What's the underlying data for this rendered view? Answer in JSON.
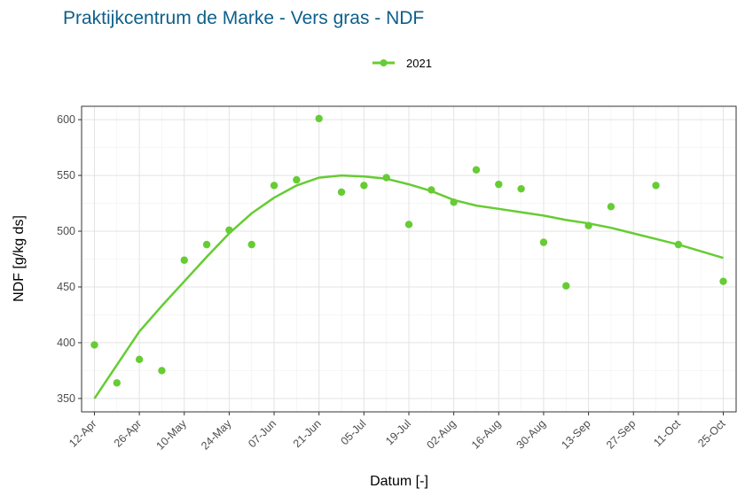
{
  "chart_data": {
    "type": "scatter",
    "title": "Praktijkcentrum de Marke - Vers gras - NDF",
    "xlabel": "Datum [-]",
    "ylabel": "NDF [g/kg ds]",
    "ylim": [
      338,
      612
    ],
    "xlim": [
      "2021-04-08",
      "2021-10-29"
    ],
    "yticks": [
      350,
      400,
      450,
      500,
      550,
      600
    ],
    "xticks": [
      {
        "date": "2021-04-12",
        "label": "12-Apr"
      },
      {
        "date": "2021-04-26",
        "label": "26-Apr"
      },
      {
        "date": "2021-05-10",
        "label": "10-May"
      },
      {
        "date": "2021-05-24",
        "label": "24-May"
      },
      {
        "date": "2021-06-07",
        "label": "07-Jun"
      },
      {
        "date": "2021-06-21",
        "label": "21-Jun"
      },
      {
        "date": "2021-07-05",
        "label": "05-Jul"
      },
      {
        "date": "2021-07-19",
        "label": "19-Jul"
      },
      {
        "date": "2021-08-02",
        "label": "02-Aug"
      },
      {
        "date": "2021-08-16",
        "label": "16-Aug"
      },
      {
        "date": "2021-08-30",
        "label": "30-Aug"
      },
      {
        "date": "2021-09-13",
        "label": "13-Sep"
      },
      {
        "date": "2021-09-27",
        "label": "27-Sep"
      },
      {
        "date": "2021-10-11",
        "label": "11-Oct"
      },
      {
        "date": "2021-10-25",
        "label": "25-Oct"
      }
    ],
    "grid": true,
    "legend_position": "top",
    "series": [
      {
        "name": "2021",
        "color": "#66cc33",
        "points": [
          [
            "2021-04-12",
            398
          ],
          [
            "2021-04-19",
            364
          ],
          [
            "2021-04-26",
            385
          ],
          [
            "2021-05-03",
            375
          ],
          [
            "2021-05-10",
            474
          ],
          [
            "2021-05-17",
            488
          ],
          [
            "2021-05-24",
            501
          ],
          [
            "2021-05-31",
            488
          ],
          [
            "2021-06-07",
            541
          ],
          [
            "2021-06-14",
            546
          ],
          [
            "2021-06-21",
            601
          ],
          [
            "2021-06-28",
            535
          ],
          [
            "2021-07-05",
            541
          ],
          [
            "2021-07-12",
            548
          ],
          [
            "2021-07-19",
            506
          ],
          [
            "2021-07-26",
            537
          ],
          [
            "2021-08-02",
            526
          ],
          [
            "2021-08-09",
            555
          ],
          [
            "2021-08-16",
            542
          ],
          [
            "2021-08-23",
            538
          ],
          [
            "2021-08-30",
            490
          ],
          [
            "2021-09-06",
            451
          ],
          [
            "2021-09-13",
            505
          ],
          [
            "2021-09-20",
            522
          ],
          [
            "2021-10-04",
            541
          ],
          [
            "2021-10-11",
            488
          ],
          [
            "2021-10-25",
            455
          ]
        ],
        "smooth": [
          [
            "2021-04-12",
            350
          ],
          [
            "2021-04-19",
            380
          ],
          [
            "2021-04-26",
            410
          ],
          [
            "2021-05-03",
            433
          ],
          [
            "2021-05-10",
            455
          ],
          [
            "2021-05-17",
            477
          ],
          [
            "2021-05-24",
            498
          ],
          [
            "2021-05-31",
            516
          ],
          [
            "2021-06-07",
            530
          ],
          [
            "2021-06-14",
            541
          ],
          [
            "2021-06-21",
            548
          ],
          [
            "2021-06-28",
            550
          ],
          [
            "2021-07-05",
            549
          ],
          [
            "2021-07-12",
            547
          ],
          [
            "2021-07-19",
            542
          ],
          [
            "2021-07-26",
            536
          ],
          [
            "2021-08-02",
            528
          ],
          [
            "2021-08-09",
            523
          ],
          [
            "2021-08-16",
            520
          ],
          [
            "2021-08-23",
            517
          ],
          [
            "2021-08-30",
            514
          ],
          [
            "2021-09-06",
            510
          ],
          [
            "2021-09-13",
            507
          ],
          [
            "2021-09-20",
            503
          ],
          [
            "2021-09-27",
            498
          ],
          [
            "2021-10-04",
            493
          ],
          [
            "2021-10-11",
            488
          ],
          [
            "2021-10-18",
            482
          ],
          [
            "2021-10-25",
            476
          ]
        ]
      }
    ]
  }
}
